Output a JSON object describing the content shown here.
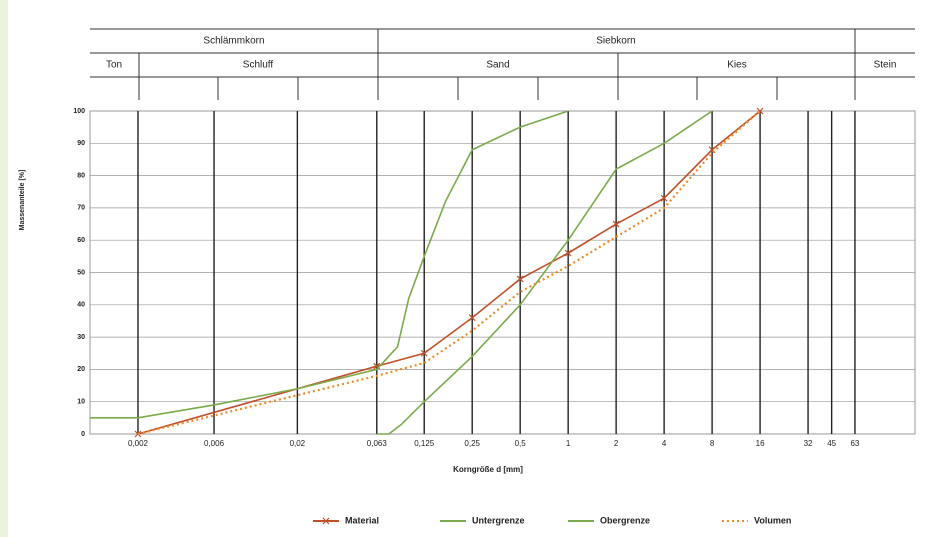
{
  "chart_data": {
    "type": "line",
    "fractions_top": [
      "Schlämmkorn",
      "Siebkorn"
    ],
    "fractions": [
      "Ton",
      "Schluff",
      "Sand",
      "Kies",
      "Stein"
    ],
    "xlabel": "Korngröße d [mm]",
    "ylabel": "Massenanteile [%]",
    "xscale": "log",
    "xlim": [
      0.001,
      150
    ],
    "ylim": [
      0,
      100
    ],
    "xticks": [
      {
        "value": 0.002,
        "label": "0,002"
      },
      {
        "value": 0.006,
        "label": "0,006"
      },
      {
        "value": 0.02,
        "label": "0,02"
      },
      {
        "value": 0.063,
        "label": "0,063"
      },
      {
        "value": 0.125,
        "label": "0,125"
      },
      {
        "value": 0.25,
        "label": "0,25"
      },
      {
        "value": 0.5,
        "label": "0,5"
      },
      1,
      2,
      4,
      8,
      16,
      32,
      45,
      63
    ],
    "yticks": [
      0,
      10,
      20,
      30,
      40,
      50,
      60,
      70,
      80,
      90,
      100
    ],
    "grid": true,
    "series": [
      {
        "name": "Material",
        "color": "#c0502a",
        "style": "solid-marker",
        "x": [
          0.002,
          0.063,
          0.125,
          0.25,
          0.5,
          1,
          2,
          4,
          8,
          16
        ],
        "values": [
          0,
          21,
          25,
          36,
          48,
          56,
          65,
          73,
          88,
          100
        ]
      },
      {
        "name": "Untergrenze",
        "color": "#7aab4a",
        "style": "solid",
        "x": [
          0.001,
          0.002,
          0.006,
          0.02,
          0.063,
          0.085,
          0.1,
          0.125,
          0.17,
          0.25,
          0.5,
          1
        ],
        "values": [
          5,
          5,
          9,
          14,
          20,
          27,
          42,
          55,
          72,
          88,
          95,
          100
        ]
      },
      {
        "name": "Obergrenze",
        "color": "#7aab4a",
        "style": "solid",
        "x": [
          0.063,
          0.075,
          0.09,
          0.125,
          0.25,
          0.5,
          1,
          2,
          4,
          8
        ],
        "values": [
          0,
          0,
          3,
          10,
          24,
          40,
          60,
          82,
          90,
          100
        ]
      },
      {
        "name": "Volumen",
        "color": "#f08a24",
        "style": "dotted",
        "x": [
          0.002,
          0.063,
          0.125,
          0.25,
          0.5,
          1,
          2,
          4,
          8,
          16
        ],
        "values": [
          0,
          18,
          22,
          32,
          44,
          52,
          61,
          70,
          87,
          100
        ]
      }
    ]
  }
}
